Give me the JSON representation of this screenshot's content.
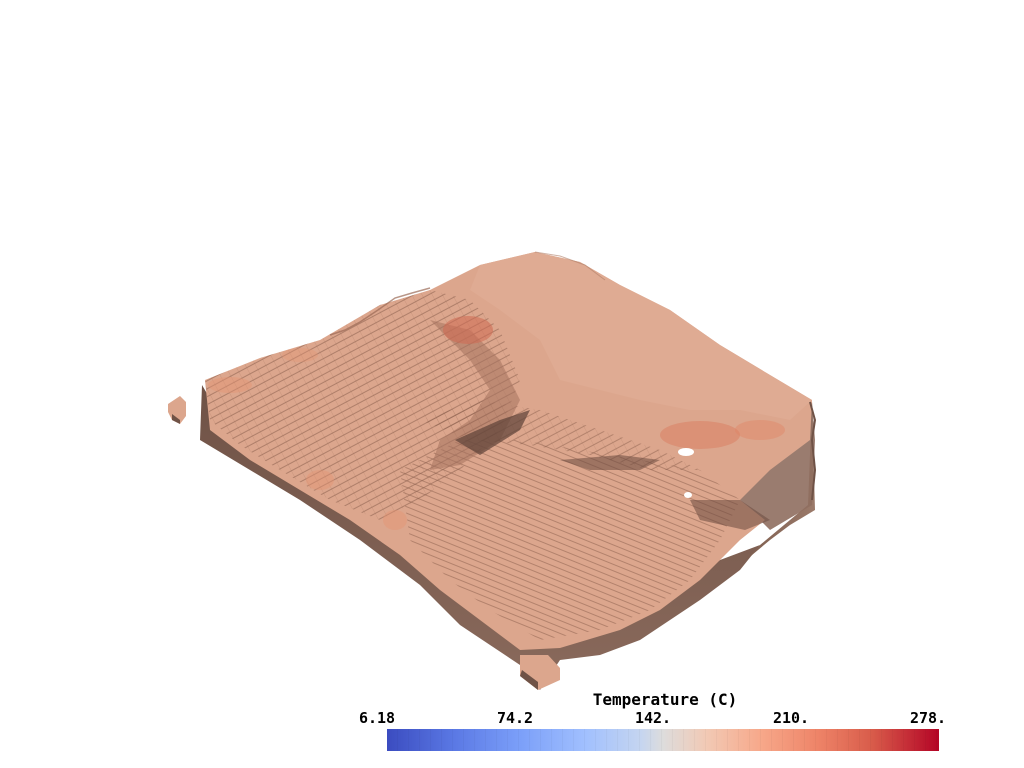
{
  "scene": {
    "description_icon": "voxel-terrain-surface",
    "surface_color": "#dca68d",
    "shade_color": "#7a5a4c",
    "background": "#ffffff"
  },
  "scalar_bar": {
    "title": "Temperature (C)",
    "ticks": [
      "6.18",
      "74.2",
      "142.",
      "210.",
      "278."
    ],
    "colormap": "coolwarm",
    "min_color": "#3b4cc0",
    "mid_color": "#dddcdc",
    "max_color": "#b40426"
  }
}
